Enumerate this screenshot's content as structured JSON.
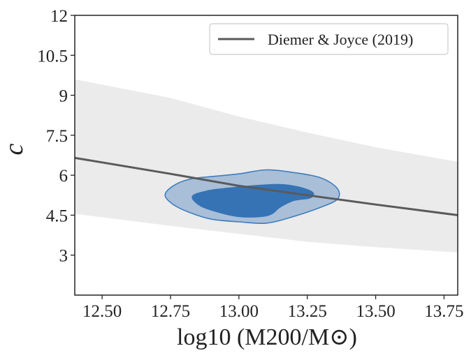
{
  "chart_data": {
    "type": "line",
    "title": "",
    "xlabel": "log10 (M200/M⊙)",
    "ylabel": "c",
    "xlim": [
      12.4,
      13.8
    ],
    "ylim": [
      1.5,
      12
    ],
    "x_ticks": [
      "12.50",
      "12.75",
      "13.00",
      "13.25",
      "13.50",
      "13.75"
    ],
    "y_ticks": [
      "3",
      "4.5",
      "6",
      "7.5",
      "9",
      "10.5",
      "12"
    ],
    "grid": false,
    "legend_position": "top-right",
    "series": [
      {
        "name": "Diemer & Joyce (2019)",
        "color": "#5a5a5a",
        "x": [
          12.4,
          12.75,
          13.0,
          13.25,
          13.5,
          13.8
        ],
        "y": [
          6.65,
          6.05,
          5.6,
          5.25,
          4.9,
          4.5
        ]
      }
    ],
    "scatter_band": {
      "color": "#ebebeb",
      "x": [
        12.4,
        12.75,
        13.0,
        13.25,
        13.5,
        13.8
      ],
      "upper": [
        9.6,
        8.9,
        8.2,
        7.6,
        7.05,
        6.5
      ],
      "lower": [
        4.55,
        4.1,
        3.8,
        3.5,
        3.3,
        3.1
      ]
    },
    "contours": [
      {
        "level": "outer",
        "fill": "#a9bfd8",
        "stroke": "#3e7dbf",
        "x": [
          12.73,
          12.76,
          12.82,
          12.9,
          13.0,
          13.1,
          13.2,
          13.3,
          13.36,
          13.36,
          13.3,
          13.2,
          13.1,
          13.0,
          12.9,
          12.82,
          12.76,
          12.73
        ],
        "y": [
          5.25,
          5.6,
          5.85,
          5.95,
          6.05,
          6.2,
          6.1,
          5.9,
          5.5,
          5.1,
          4.8,
          4.45,
          4.2,
          4.25,
          4.35,
          4.6,
          4.9,
          5.25
        ]
      },
      {
        "level": "inner",
        "fill": "#3673b5",
        "stroke": "#3673b5",
        "x": [
          12.83,
          12.88,
          12.95,
          13.05,
          13.15,
          13.22,
          13.27,
          13.26,
          13.2,
          13.15,
          13.12,
          13.08,
          13.0,
          12.93,
          12.86,
          12.83
        ],
        "y": [
          5.2,
          5.4,
          5.5,
          5.6,
          5.65,
          5.55,
          5.35,
          5.15,
          5.05,
          4.8,
          4.55,
          4.45,
          4.45,
          4.6,
          4.85,
          5.2
        ]
      }
    ]
  }
}
